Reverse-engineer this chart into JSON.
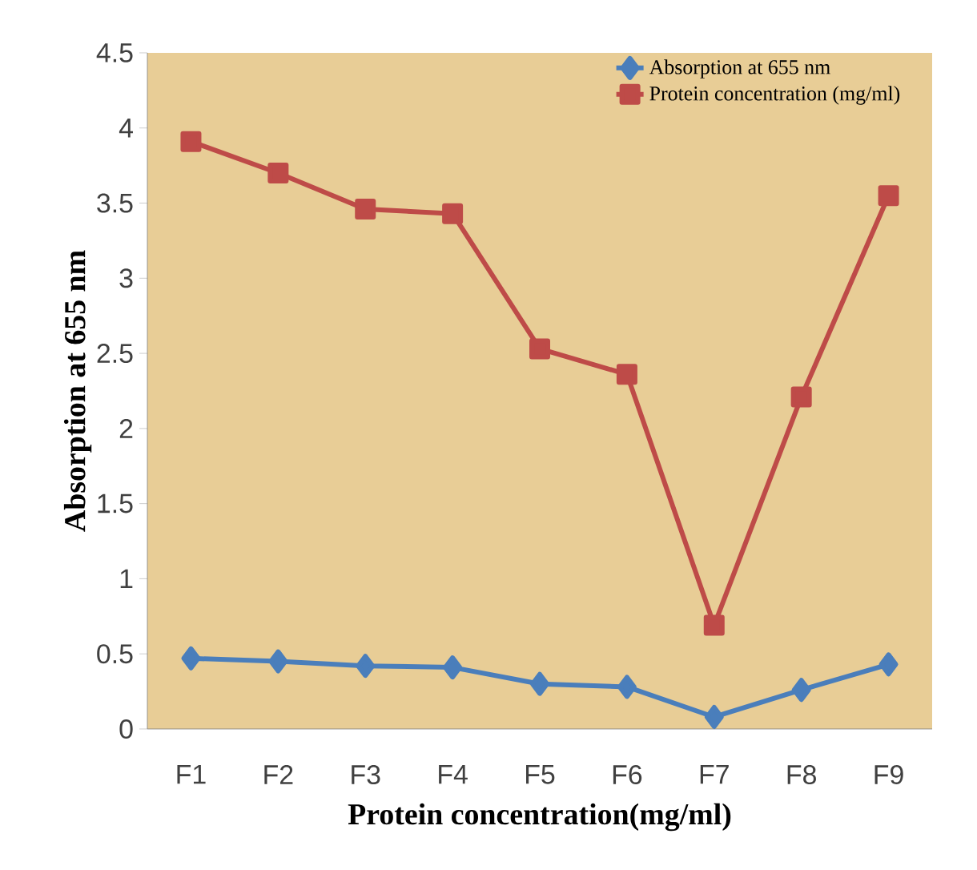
{
  "chart_data": {
    "type": "line",
    "xlabel": "Protein concentration(mg/ml)",
    "ylabel": "Absorption at 655 nm",
    "categories": [
      "F1",
      "F2",
      "F3",
      "F4",
      "F5",
      "F6",
      "F7",
      "F8",
      "F9"
    ],
    "ylim": [
      0,
      4.5
    ],
    "yticks": [
      0,
      0.5,
      1,
      1.5,
      2,
      2.5,
      3,
      3.5,
      4,
      4.5
    ],
    "grid": false,
    "legend": "top right",
    "series": [
      {
        "name": "Absorption at 655 nm",
        "color": "#4a7ebb",
        "marker": "diamond",
        "values": [
          0.47,
          0.45,
          0.42,
          0.41,
          0.3,
          0.28,
          0.08,
          0.26,
          0.43
        ]
      },
      {
        "name": "Protein concentration (mg/ml)",
        "color": "#be4b48",
        "marker": "square",
        "values": [
          3.91,
          3.7,
          3.46,
          3.43,
          2.53,
          2.36,
          0.69,
          2.21,
          3.55
        ]
      }
    ]
  }
}
